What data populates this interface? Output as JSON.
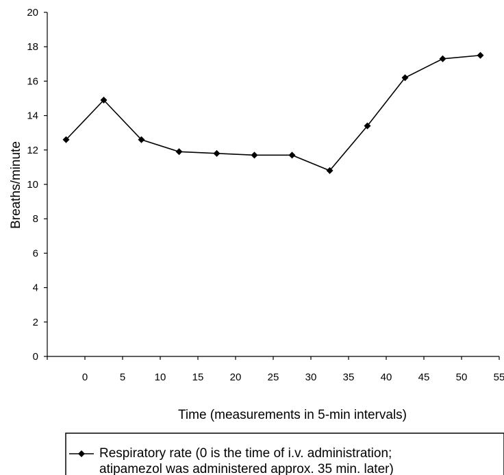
{
  "chart_data": {
    "type": "line",
    "xlabel": "Time (measurements in 5-min intervals)",
    "ylabel": "Breaths/minute",
    "xlim": [
      -5,
      55
    ],
    "ylim": [
      0,
      20
    ],
    "x_ticks": [
      "0",
      "5",
      "10",
      "15",
      "20",
      "25",
      "30",
      "35",
      "40",
      "45",
      "50",
      "55"
    ],
    "y_ticks": [
      "0",
      "2",
      "4",
      "6",
      "8",
      "10",
      "12",
      "14",
      "16",
      "18",
      "20"
    ],
    "grid": false,
    "legend_position": "bottom",
    "series": [
      {
        "name": "Respiratory rate (0 is the time of  i.v. administration; atipamezol was administered approx. 35 min. later)",
        "legend_lines": [
          "Respiratory rate (0 is the time of  i.v. administration;",
          "atipamezol was administered approx. 35 min. later)"
        ],
        "x": [
          -2.5,
          2.5,
          7.5,
          12.5,
          17.5,
          22.5,
          27.5,
          32.5,
          37.5,
          42.5,
          47.5,
          52.5
        ],
        "y": [
          12.6,
          14.9,
          12.6,
          11.9,
          11.8,
          11.7,
          11.7,
          10.8,
          13.4,
          16.2,
          17.3,
          17.5
        ],
        "color": "#000000",
        "marker": "diamond"
      }
    ]
  }
}
